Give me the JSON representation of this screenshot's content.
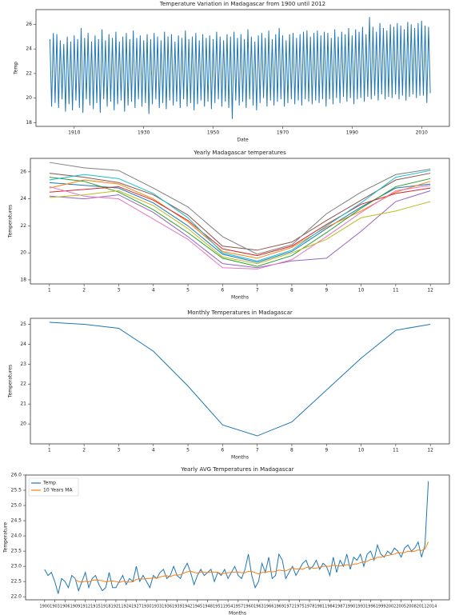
{
  "chart_data": [
    {
      "type": "line",
      "title": "Temperature Variation in Madagascar from 1900 until 2012",
      "xlabel": "Date",
      "ylabel": "Temp",
      "x": [
        1903,
        1903.5,
        1904,
        1904.5,
        1905,
        1905.5,
        1906,
        1906.5,
        1907,
        1907.5,
        1908,
        1908.5,
        1909,
        1909.5,
        1910,
        1910.5,
        1911,
        1911.5,
        1912,
        1912.5,
        1913,
        1913.5,
        1914,
        1914.5,
        1915,
        1915.5,
        1916,
        1916.5,
        1917,
        1917.5,
        1918,
        1918.5,
        1919,
        1919.5,
        1920,
        1920.5,
        1921,
        1921.5,
        1922,
        1922.5,
        1923,
        1923.5,
        1924,
        1924.5,
        1925,
        1925.5,
        1926,
        1926.5,
        1927,
        1927.5,
        1928,
        1928.5,
        1929,
        1929.5,
        1930,
        1930.5,
        1931,
        1931.5,
        1932,
        1932.5,
        1933,
        1933.5,
        1934,
        1934.5,
        1935,
        1935.5,
        1936,
        1936.5,
        1937,
        1937.5,
        1938,
        1938.5,
        1939,
        1939.5,
        1940,
        1940.5,
        1941,
        1941.5,
        1942,
        1942.5,
        1943,
        1943.5,
        1944,
        1944.5,
        1945,
        1945.5,
        1946,
        1946.5,
        1947,
        1947.5,
        1948,
        1948.5,
        1949,
        1949.5,
        1950,
        1950.5,
        1951,
        1951.5,
        1952,
        1952.5,
        1953,
        1953.5,
        1954,
        1954.5,
        1955,
        1955.5,
        1956,
        1956.5,
        1957,
        1957.5,
        1958,
        1958.5,
        1959,
        1959.5,
        1960,
        1960.5,
        1961,
        1961.5,
        1962,
        1962.5,
        1963,
        1963.5,
        1964,
        1964.5,
        1965,
        1965.5,
        1966,
        1966.5,
        1967,
        1967.5,
        1968,
        1968.5,
        1969,
        1969.5,
        1970,
        1970.5,
        1971,
        1971.5,
        1972,
        1972.5,
        1973,
        1973.5,
        1974,
        1974.5,
        1975,
        1975.5,
        1976,
        1976.5,
        1977,
        1977.5,
        1978,
        1978.5,
        1979,
        1979.5,
        1980,
        1980.5,
        1981,
        1981.5,
        1982,
        1982.5,
        1983,
        1983.5,
        1984,
        1984.5,
        1985,
        1985.5,
        1986,
        1986.5,
        1987,
        1987.5,
        1988,
        1988.5,
        1989,
        1989.5,
        1990,
        1990.5,
        1991,
        1991.5,
        1992,
        1992.5,
        1993,
        1993.5,
        1994,
        1994.5,
        1995,
        1995.5,
        1996,
        1996.5,
        1997,
        1997.5,
        1998,
        1998.5,
        1999,
        1999.5,
        2000,
        2000.5,
        2001,
        2001.5,
        2002,
        2002.5,
        2003,
        2003.5,
        2004,
        2004.5,
        2005,
        2005.5,
        2006,
        2006.5,
        2007,
        2007.5,
        2008,
        2008.5,
        2009,
        2009.5,
        2010,
        2010.5,
        2011,
        2011.5,
        2012,
        2012.5
      ],
      "series": [
        {
          "color": "#1f77b4",
          "values": [
            24.8,
            19.3,
            25.3,
            19.6,
            25.2,
            19.2,
            24.7,
            19.9,
            24.4,
            18.9,
            25.0,
            19.5,
            24.6,
            19.0,
            25.1,
            19.8,
            24.8,
            19.2,
            25.7,
            18.8,
            24.9,
            19.9,
            25.3,
            19.4,
            24.6,
            19.1,
            25.1,
            19.6,
            24.8,
            18.8,
            25.6,
            19.9,
            24.7,
            19.3,
            25.2,
            19.7,
            24.9,
            19.0,
            25.4,
            19.5,
            24.6,
            19.8,
            25.0,
            18.9,
            25.3,
            19.4,
            24.8,
            19.7,
            25.5,
            19.2,
            24.9,
            19.9,
            25.1,
            19.3,
            24.7,
            19.6,
            25.2,
            18.7,
            24.8,
            19.5,
            25.3,
            19.9,
            25.0,
            19.2,
            24.7,
            19.6,
            25.4,
            19.1,
            25.0,
            19.8,
            25.2,
            19.4,
            24.6,
            19.7,
            25.1,
            19.2,
            24.9,
            19.9,
            25.5,
            19.3,
            24.8,
            19.6,
            25.0,
            19.0,
            25.3,
            19.5,
            24.7,
            19.8,
            25.2,
            19.3,
            24.9,
            19.7,
            25.1,
            19.1,
            24.8,
            19.6,
            25.4,
            19.9,
            25.0,
            19.3,
            24.7,
            19.7,
            25.2,
            19.2,
            25.0,
            18.3,
            25.4,
            19.8,
            24.9,
            19.4,
            25.2,
            19.7,
            24.8,
            19.2,
            25.6,
            19.9,
            25.0,
            19.4,
            24.6,
            19.0,
            25.1,
            19.6,
            25.3,
            20.0,
            24.9,
            19.3,
            25.5,
            19.8,
            24.8,
            19.4,
            25.2,
            19.7,
            25.7,
            19.9,
            25.1,
            19.3,
            24.7,
            19.6,
            25.2,
            19.9,
            25.3,
            19.5,
            24.9,
            19.8,
            25.2,
            19.4,
            25.4,
            19.9,
            25.5,
            19.7,
            25.0,
            19.5,
            25.3,
            19.8,
            25.5,
            19.6,
            25.1,
            19.9,
            25.4,
            19.3,
            25.3,
            19.9,
            24.9,
            19.5,
            25.6,
            20.0,
            25.0,
            19.6,
            25.4,
            20.1,
            25.2,
            19.7,
            25.7,
            20.0,
            25.1,
            19.5,
            25.6,
            19.9,
            25.4,
            20.0,
            25.8,
            19.7,
            25.2,
            20.1,
            26.6,
            19.9,
            25.8,
            20.2,
            25.4,
            19.8,
            26.1,
            20.3,
            25.7,
            19.9,
            25.5,
            20.1,
            26.0,
            20.0,
            25.8,
            20.3,
            26.1,
            19.9,
            25.9,
            20.2,
            25.6,
            19.8,
            26.2,
            20.1,
            26.0,
            20.3,
            25.7,
            20.0,
            26.1,
            20.2,
            26.3,
            20.2,
            25.9,
            19.6,
            25.8,
            20.4
          ]
        }
      ],
      "xlim": [
        1899,
        2018
      ],
      "ylim": [
        17.7,
        27.2
      ],
      "xticks": [
        1910,
        1930,
        1950,
        1970,
        1990,
        2010
      ],
      "yticks": [
        18,
        20,
        22,
        24,
        26
      ]
    },
    {
      "type": "line",
      "title": "Yearly Madagascar temperatures",
      "xlabel": "Months",
      "ylabel": "Temperatures",
      "x": [
        1,
        2,
        3,
        4,
        5,
        6,
        7,
        8,
        9,
        10,
        11,
        12
      ],
      "series": [
        {
          "color": "#1f77b4",
          "values": [
            25.2,
            25.0,
            24.8,
            23.7,
            22.0,
            19.9,
            19.3,
            20.1,
            21.8,
            23.4,
            24.8,
            25.1
          ]
        },
        {
          "color": "#ff7f0e",
          "values": [
            24.8,
            25.4,
            25.1,
            24.0,
            22.3,
            20.1,
            19.6,
            20.4,
            21.9,
            23.1,
            24.5,
            25.3
          ]
        },
        {
          "color": "#2ca02c",
          "values": [
            25.6,
            25.3,
            24.5,
            23.2,
            21.5,
            19.6,
            19.0,
            19.8,
            21.5,
            23.3,
            24.9,
            25.5
          ]
        },
        {
          "color": "#d62728",
          "values": [
            24.5,
            24.7,
            24.9,
            23.9,
            22.4,
            20.3,
            19.8,
            20.5,
            22.1,
            23.6,
            24.4,
            24.8
          ]
        },
        {
          "color": "#9467bd",
          "values": [
            24.2,
            24.0,
            24.3,
            23.0,
            21.2,
            19.2,
            18.9,
            19.4,
            19.6,
            21.6,
            23.8,
            24.6
          ]
        },
        {
          "color": "#8c564b",
          "values": [
            25.9,
            25.6,
            25.2,
            24.3,
            22.8,
            20.5,
            20.2,
            20.8,
            22.4,
            23.9,
            25.4,
            25.9
          ]
        },
        {
          "color": "#e377c2",
          "values": [
            24.9,
            24.2,
            24.0,
            22.5,
            21.0,
            18.9,
            18.8,
            19.5,
            21.2,
            23.0,
            24.6,
            25.0
          ]
        },
        {
          "color": "#7f7f7f",
          "values": [
            26.7,
            26.3,
            26.1,
            24.8,
            23.4,
            21.2,
            19.9,
            20.6,
            22.9,
            24.5,
            25.8,
            26.2
          ]
        },
        {
          "color": "#bcbd22",
          "values": [
            24.1,
            24.3,
            24.6,
            23.5,
            21.8,
            19.7,
            19.2,
            20.0,
            21.0,
            22.6,
            23.1,
            23.8
          ]
        },
        {
          "color": "#17becf",
          "values": [
            25.4,
            25.8,
            25.5,
            24.4,
            22.6,
            20.0,
            19.4,
            20.2,
            22.0,
            23.7,
            25.6,
            26.1
          ]
        }
      ],
      "xlim": [
        0.45,
        12.55
      ],
      "ylim": [
        17.7,
        27.0
      ],
      "xticks": [
        1,
        2,
        3,
        4,
        5,
        6,
        7,
        8,
        9,
        10,
        11,
        12
      ],
      "yticks": [
        18,
        20,
        22,
        24,
        26
      ]
    },
    {
      "type": "line",
      "title": "Monthly Temperatures in Madagascar",
      "xlabel": "Months",
      "ylabel": "Temperatures",
      "x": [
        1,
        2,
        3,
        4,
        5,
        6,
        7,
        8,
        9,
        10,
        11,
        12
      ],
      "series": [
        {
          "color": "#1f77b4",
          "values": [
            25.1,
            25.0,
            24.8,
            23.65,
            21.9,
            19.95,
            19.4,
            20.1,
            21.7,
            23.3,
            24.7,
            25.0
          ]
        }
      ],
      "xlim": [
        0.45,
        12.55
      ],
      "ylim": [
        19.0,
        25.3
      ],
      "xticks": [
        1,
        2,
        3,
        4,
        5,
        6,
        7,
        8,
        9,
        10,
        11,
        12
      ],
      "yticks": [
        20,
        21,
        22,
        23,
        24,
        25
      ]
    },
    {
      "type": "line",
      "title": "Yearly AVG Temperatures in Madagascar",
      "xlabel": "Months",
      "ylabel": "Temperature",
      "legend": "upper left",
      "x": [
        1900,
        1901,
        1902,
        1903,
        1904,
        1905,
        1906,
        1907,
        1908,
        1909,
        1910,
        1911,
        1912,
        1913,
        1914,
        1915,
        1916,
        1917,
        1918,
        1919,
        1920,
        1921,
        1922,
        1923,
        1924,
        1925,
        1926,
        1927,
        1928,
        1929,
        1930,
        1931,
        1932,
        1933,
        1934,
        1935,
        1936,
        1937,
        1938,
        1939,
        1940,
        1941,
        1942,
        1943,
        1944,
        1945,
        1946,
        1947,
        1948,
        1949,
        1950,
        1951,
        1952,
        1953,
        1954,
        1955,
        1956,
        1957,
        1958,
        1959,
        1960,
        1961,
        1962,
        1963,
        1964,
        1965,
        1966,
        1967,
        1968,
        1969,
        1970,
        1971,
        1972,
        1973,
        1974,
        1975,
        1976,
        1977,
        1978,
        1979,
        1980,
        1981,
        1982,
        1983,
        1984,
        1985,
        1986,
        1987,
        1988,
        1989,
        1990,
        1991,
        1992,
        1993,
        1994,
        1995,
        1996,
        1997,
        1998,
        1999,
        2000,
        2001,
        2002,
        2003,
        2004,
        2005,
        2006,
        2007,
        2008,
        2009,
        2010,
        2011,
        2012,
        2013
      ],
      "series": [
        {
          "name": "Temp",
          "color": "#1f77b4",
          "values": [
            22.9,
            22.7,
            22.8,
            22.5,
            22.1,
            22.6,
            22.5,
            22.3,
            22.7,
            22.6,
            22.2,
            22.5,
            22.8,
            22.3,
            22.6,
            22.7,
            22.4,
            22.2,
            22.3,
            22.8,
            22.3,
            22.3,
            22.5,
            22.7,
            22.4,
            22.6,
            22.5,
            23.0,
            22.5,
            22.7,
            22.5,
            22.3,
            22.7,
            22.6,
            22.8,
            22.9,
            22.6,
            22.7,
            23.0,
            22.7,
            22.6,
            22.9,
            23.1,
            22.8,
            22.4,
            22.7,
            22.9,
            22.7,
            22.8,
            22.9,
            22.5,
            22.8,
            22.7,
            22.9,
            22.6,
            22.8,
            23.0,
            22.7,
            22.6,
            22.9,
            23.4,
            22.7,
            22.3,
            22.5,
            23.1,
            22.8,
            23.3,
            22.6,
            22.7,
            23.4,
            23.2,
            22.6,
            22.8,
            23.0,
            22.7,
            22.9,
            23.1,
            23.2,
            22.9,
            23.0,
            23.2,
            22.9,
            23.1,
            23.0,
            22.7,
            23.3,
            22.8,
            23.2,
            23.0,
            23.4,
            22.9,
            23.3,
            23.2,
            23.4,
            23.0,
            23.4,
            23.5,
            23.2,
            23.7,
            23.4,
            23.3,
            23.5,
            23.4,
            23.6,
            23.5,
            23.3,
            23.6,
            23.7,
            23.5,
            23.6,
            23.8,
            23.3,
            23.7,
            25.8
          ]
        },
        {
          "name": "10 Years MA",
          "color": "#ff7f0e",
          "values": [
            null,
            null,
            null,
            null,
            null,
            null,
            null,
            null,
            null,
            22.57,
            22.5,
            22.48,
            22.51,
            22.49,
            22.54,
            22.55,
            22.54,
            22.53,
            22.49,
            22.51,
            22.52,
            22.5,
            22.47,
            22.51,
            22.49,
            22.48,
            22.49,
            22.57,
            22.59,
            22.58,
            22.6,
            22.6,
            22.62,
            22.61,
            22.65,
            22.68,
            22.69,
            22.66,
            22.71,
            22.71,
            22.72,
            22.78,
            22.82,
            22.84,
            22.8,
            22.78,
            22.81,
            22.81,
            22.79,
            22.81,
            22.81,
            22.8,
            22.76,
            22.77,
            22.79,
            22.8,
            22.81,
            22.81,
            22.79,
            22.79,
            22.84,
            22.83,
            22.79,
            22.75,
            22.8,
            22.8,
            22.83,
            22.82,
            22.83,
            22.88,
            22.86,
            22.85,
            22.9,
            22.95,
            22.91,
            22.92,
            22.9,
            22.96,
            22.98,
            22.94,
            22.94,
            22.97,
            23.0,
            23.0,
            23.0,
            23.04,
            23.01,
            23.01,
            23.02,
            23.06,
            23.03,
            23.07,
            23.08,
            23.12,
            23.15,
            23.16,
            23.23,
            23.23,
            23.3,
            23.3,
            23.34,
            23.36,
            23.38,
            23.4,
            23.45,
            23.44,
            23.45,
            23.5,
            23.48,
            23.5,
            23.54,
            23.52,
            23.57,
            23.8
          ]
        }
      ],
      "xlim": [
        1894.4,
        2019.2
      ],
      "ylim": [
        21.9,
        26.0
      ],
      "xticks": [
        1900,
        1903,
        1906,
        1909,
        1912,
        1915,
        1918,
        1921,
        1924,
        1927,
        1930,
        1933,
        1936,
        1939,
        1942,
        1945,
        1948,
        1951,
        1954,
        1957,
        1960,
        1963,
        1966,
        1969,
        1972,
        1975,
        1978,
        1981,
        1984,
        1987,
        1990,
        1993,
        1996,
        1999,
        2002,
        2005,
        2008,
        2011,
        2014
      ],
      "yticks": [
        {
          "value": 22,
          "label": "22.0"
        },
        22.5,
        {
          "value": 23,
          "label": "23.0"
        },
        23.5,
        {
          "value": 24,
          "label": "24.0"
        },
        24.5,
        {
          "value": 25,
          "label": "25.0"
        },
        25.5,
        {
          "value": 26,
          "label": "26.0"
        }
      ]
    }
  ]
}
